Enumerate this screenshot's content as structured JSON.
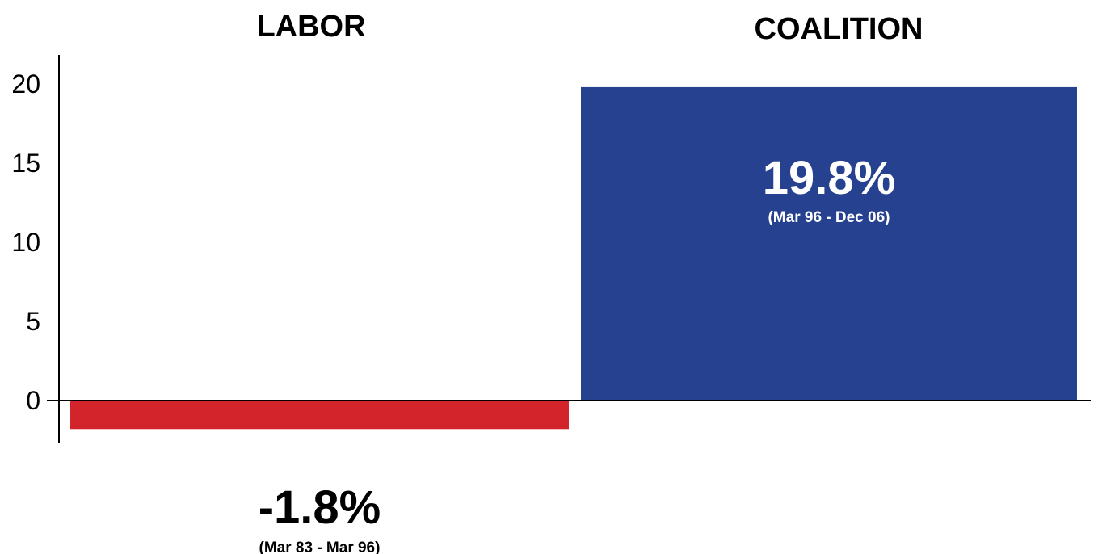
{
  "chart_data": {
    "type": "bar",
    "categories": [
      "LABOR",
      "COALITION"
    ],
    "values": [
      -1.8,
      19.8
    ],
    "value_labels": [
      "-1.8%",
      "19.8%"
    ],
    "period_labels": [
      "(Mar 83 - Mar 96)",
      "(Mar 96 - Dec 06)"
    ],
    "colors": [
      "#d3232b",
      "#26418f"
    ],
    "label_colors": [
      "#000000",
      "#ffffff"
    ],
    "yticks": [
      0,
      5,
      10,
      15,
      20
    ],
    "ylim": [
      -2.8,
      22
    ],
    "title": "",
    "xlabel": "",
    "ylabel": "",
    "grid": false
  }
}
